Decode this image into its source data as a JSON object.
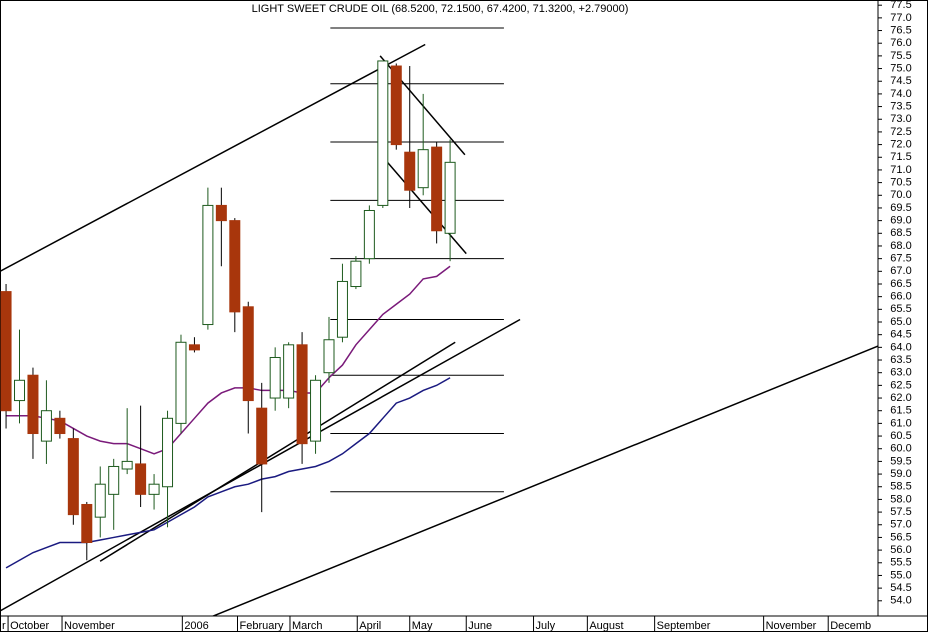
{
  "chart_data": {
    "type": "candlestick",
    "title": "LIGHT SWEET CRUDE OIL (68.5200, 72.1500, 67.4200, 71.3200, +2.79000)",
    "x": [
      0,
      1,
      2,
      3,
      4,
      5,
      6,
      7,
      8,
      9,
      10,
      11,
      12,
      13,
      14,
      15,
      16,
      17,
      18,
      19,
      20,
      21,
      22,
      23,
      24,
      25,
      26,
      27,
      28,
      29,
      30,
      31,
      32,
      33
    ],
    "open": [
      66.2,
      61.9,
      62.9,
      60.3,
      61.2,
      60.4,
      57.8,
      57.3,
      58.2,
      59.2,
      59.4,
      58.2,
      58.5,
      61.0,
      64.1,
      64.9,
      69.6,
      69.0,
      65.6,
      61.6,
      62.0,
      62.0,
      64.1,
      60.3,
      63.0,
      64.4,
      66.4,
      67.5,
      69.6,
      75.1,
      71.7,
      70.3,
      71.9,
      68.5
    ],
    "high": [
      66.5,
      64.7,
      63.2,
      62.7,
      61.5,
      60.8,
      57.9,
      59.3,
      59.6,
      61.6,
      61.7,
      59.0,
      61.5,
      64.5,
      64.4,
      70.3,
      70.3,
      69.1,
      65.8,
      62.6,
      64.0,
      64.2,
      64.6,
      62.9,
      65.2,
      67.3,
      67.6,
      69.6,
      75.3,
      75.2,
      75.1,
      74.0,
      72.1,
      72.2
    ],
    "low": [
      60.8,
      61.0,
      59.6,
      59.4,
      60.4,
      57.0,
      55.6,
      56.5,
      56.8,
      59.0,
      57.7,
      57.6,
      56.9,
      60.6,
      63.8,
      64.7,
      67.2,
      64.6,
      60.6,
      57.5,
      61.5,
      61.6,
      59.4,
      59.8,
      62.6,
      64.2,
      66.3,
      67.3,
      69.5,
      71.8,
      69.5,
      70.0,
      68.1,
      67.4
    ],
    "close": [
      61.5,
      62.7,
      60.6,
      61.5,
      60.6,
      57.4,
      56.3,
      58.6,
      59.3,
      59.5,
      58.2,
      58.6,
      61.2,
      64.2,
      63.9,
      69.6,
      69.0,
      65.4,
      61.9,
      59.4,
      63.6,
      64.1,
      60.2,
      62.7,
      64.3,
      66.6,
      67.4,
      69.4,
      75.3,
      72.0,
      70.2,
      71.8,
      68.6,
      71.3
    ],
    "up_color": "#1e5a1e",
    "down_color": "#a8360c",
    "series": [
      {
        "color": "#7a1a7a",
        "values": [
          61.3,
          61.3,
          61.3,
          61.2,
          61.1,
          60.8,
          60.5,
          60.3,
          60.2,
          60.2,
          60.0,
          59.8,
          60.0,
          60.6,
          61.2,
          61.8,
          62.2,
          62.4,
          62.4,
          62.3,
          62.3,
          62.3,
          62.2,
          62.2,
          62.8,
          63.3,
          64.1,
          64.7,
          65.3,
          65.7,
          66.1,
          66.7,
          66.8,
          67.2
        ]
      },
      {
        "color": "#1a1a80",
        "values": [
          55.3,
          55.6,
          55.9,
          56.1,
          56.3,
          56.3,
          56.3,
          56.4,
          56.5,
          56.6,
          56.7,
          56.8,
          57.1,
          57.4,
          57.7,
          58.1,
          58.3,
          58.5,
          58.6,
          58.8,
          58.9,
          59.1,
          59.2,
          59.3,
          59.5,
          59.8,
          60.2,
          60.6,
          61.2,
          61.8,
          62.0,
          62.3,
          62.5,
          62.8
        ]
      }
    ],
    "levels": [
      76.6,
      74.4,
      72.1,
      69.8,
      67.5,
      65.1,
      62.9,
      60.6,
      58.3
    ],
    "levels_span": [
      24.1,
      37
    ],
    "trendlines": [
      [
        -0.45,
        67.0,
        31.15,
        75.95
      ],
      [
        -0.45,
        53.6,
        38.2,
        65.1
      ],
      [
        15.17,
        53.35,
        64.8,
        64.05
      ],
      [
        6.99,
        55.56,
        33.38,
        64.2
      ],
      [
        27.8,
        75.5,
        34.1,
        71.6
      ],
      [
        28.18,
        71.4,
        34.2,
        67.7
      ]
    ],
    "xlim": [
      -0.45,
      64.8
    ],
    "xticks": [
      {
        "value": -0.45,
        "label": "r"
      },
      {
        "value": 0.15,
        "label": "October"
      },
      {
        "value": 4.16,
        "label": "November"
      },
      {
        "value": 13.1,
        "label": "2006"
      },
      {
        "value": 17.2,
        "label": "February"
      },
      {
        "value": 21.1,
        "label": "March"
      },
      {
        "value": 26.1,
        "label": "April"
      },
      {
        "value": 30,
        "label": "May"
      },
      {
        "value": 34.2,
        "label": "June"
      },
      {
        "value": 39.2,
        "label": "July"
      },
      {
        "value": 43.2,
        "label": "August"
      },
      {
        "value": 48.2,
        "label": "September"
      },
      {
        "value": 56.3,
        "label": "November"
      },
      {
        "value": 61.1,
        "label": "Decemb"
      }
    ],
    "ylim": [
      53.4,
      77.35
    ],
    "yticks": [
      {
        "value": 54,
        "label": "54.0"
      },
      {
        "value": 54.5,
        "label": "54.5"
      },
      {
        "value": 55,
        "label": "55.0"
      },
      {
        "value": 55.5,
        "label": "55.5"
      },
      {
        "value": 56,
        "label": "56.0"
      },
      {
        "value": 56.5,
        "label": "56.5"
      },
      {
        "value": 57,
        "label": "57.0"
      },
      {
        "value": 57.5,
        "label": "57.5"
      },
      {
        "value": 58,
        "label": "58.0"
      },
      {
        "value": 58.5,
        "label": "58.5"
      },
      {
        "value": 59,
        "label": "59.0"
      },
      {
        "value": 59.5,
        "label": "59.5"
      },
      {
        "value": 60,
        "label": "60.0"
      },
      {
        "value": 60.5,
        "label": "60.5"
      },
      {
        "value": 61,
        "label": "61.0"
      },
      {
        "value": 61.5,
        "label": "61.5"
      },
      {
        "value": 62,
        "label": "62.0"
      },
      {
        "value": 62.5,
        "label": "62.5"
      },
      {
        "value": 63,
        "label": "63.0"
      },
      {
        "value": 63.5,
        "label": "63.5"
      },
      {
        "value": 64,
        "label": "64.0"
      },
      {
        "value": 64.5,
        "label": "64.5"
      },
      {
        "value": 65,
        "label": "65.0"
      },
      {
        "value": 65.5,
        "label": "65.5"
      },
      {
        "value": 66,
        "label": "66.0"
      },
      {
        "value": 66.5,
        "label": "66.5"
      },
      {
        "value": 67,
        "label": "67.0"
      },
      {
        "value": 67.5,
        "label": "67.5"
      },
      {
        "value": 68,
        "label": "68.0"
      },
      {
        "value": 68.5,
        "label": "68.5"
      },
      {
        "value": 69,
        "label": "69.0"
      },
      {
        "value": 69.5,
        "label": "69.5"
      },
      {
        "value": 70,
        "label": "70.0"
      },
      {
        "value": 70.5,
        "label": "70.5"
      },
      {
        "value": 71,
        "label": "71.0"
      },
      {
        "value": 71.5,
        "label": "71.5"
      },
      {
        "value": 72,
        "label": "72.0"
      },
      {
        "value": 72.5,
        "label": "72.5"
      },
      {
        "value": 73,
        "label": "73.0"
      },
      {
        "value": 73.5,
        "label": "73.5"
      },
      {
        "value": 74,
        "label": "74.0"
      },
      {
        "value": 74.5,
        "label": "74.5"
      },
      {
        "value": 75,
        "label": "75.0"
      },
      {
        "value": 75.5,
        "label": "75.5"
      },
      {
        "value": 76,
        "label": "76.0"
      },
      {
        "value": 76.5,
        "label": "76.5"
      },
      {
        "value": 77,
        "label": "77.0"
      },
      {
        "value": 77.5,
        "label": "77.5"
      }
    ]
  }
}
